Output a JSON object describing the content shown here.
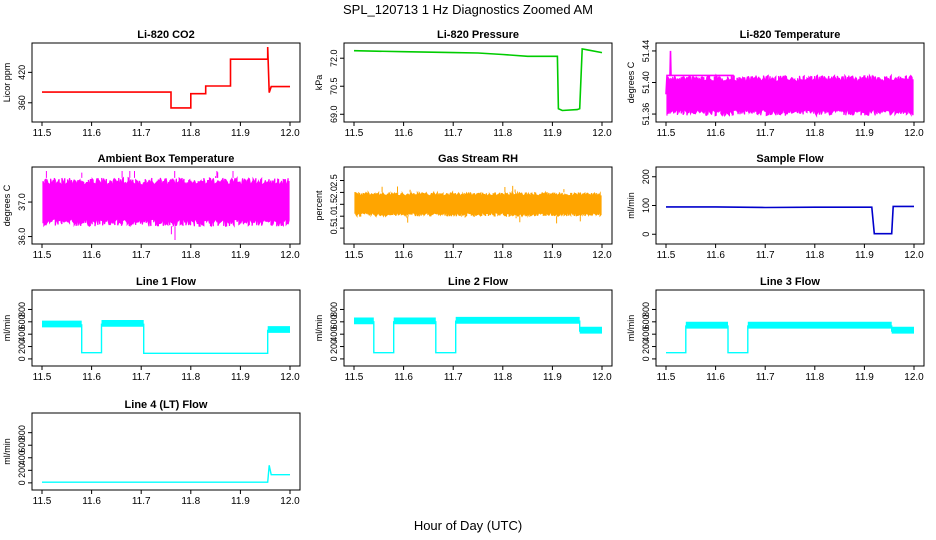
{
  "figure": {
    "title": "SPL_120713  1 Hz Diagnostics Zoomed AM",
    "xlabel": "Hour of Day (UTC)"
  },
  "chart_data": [
    {
      "type": "line",
      "title": "Li-820 CO2",
      "ylabel": "Licor ppm",
      "color": "#ff0000",
      "xlim": [
        11.5,
        12.0
      ],
      "ylim": [
        330,
        470
      ],
      "xticks": [
        "11.5",
        "11.6",
        "11.7",
        "11.8",
        "11.9",
        "12.0"
      ],
      "yticks": [
        360,
        420
      ],
      "yticklabels": [
        "360",
        "420"
      ],
      "series": [
        {
          "points": [
            [
              11.5,
              381
            ],
            [
              11.76,
              381
            ],
            [
              11.76,
              350
            ],
            [
              11.8,
              350
            ],
            [
              11.8,
              378
            ],
            [
              11.83,
              378
            ],
            [
              11.83,
              393
            ],
            [
              11.88,
              393
            ],
            [
              11.88,
              446
            ],
            [
              11.955,
              446
            ],
            [
              11.955,
              470
            ],
            [
              11.958,
              380
            ],
            [
              11.962,
              392
            ],
            [
              12.0,
              392
            ]
          ]
        }
      ]
    },
    {
      "type": "line",
      "title": "Li-820 Pressure",
      "ylabel": "kPa",
      "color": "#00cc00",
      "xlim": [
        11.5,
        12.0
      ],
      "ylim": [
        68.8,
        72.6
      ],
      "xticks": [
        "11.5",
        "11.6",
        "11.7",
        "11.8",
        "11.9",
        "12.0"
      ],
      "yticks": [
        69.0,
        70.5,
        72.0
      ],
      "yticklabels": [
        "69.0",
        "70.5",
        "72.0"
      ],
      "series": [
        {
          "points": [
            [
              11.5,
              72.4
            ],
            [
              11.6,
              72.35
            ],
            [
              11.7,
              72.3
            ],
            [
              11.75,
              72.28
            ],
            [
              11.8,
              72.2
            ],
            [
              11.85,
              72.1
            ],
            [
              11.9,
              72.1
            ],
            [
              11.91,
              72.1
            ],
            [
              11.912,
              69.3
            ],
            [
              11.92,
              69.2
            ],
            [
              11.95,
              69.25
            ],
            [
              11.955,
              69.3
            ],
            [
              11.96,
              72.5
            ],
            [
              11.97,
              72.45
            ],
            [
              12.0,
              72.3
            ]
          ]
        }
      ]
    },
    {
      "type": "line",
      "title": "Li-820 Temperature",
      "ylabel": "degrees C",
      "color": "#ff00ff",
      "xlim": [
        11.5,
        12.0
      ],
      "ylim": [
        51.355,
        51.445
      ],
      "xticks": [
        "11.5",
        "11.6",
        "11.7",
        "11.8",
        "11.9",
        "12.0"
      ],
      "yticks": [
        51.36,
        51.4,
        51.44
      ],
      "yticklabels": [
        "51.36",
        "51.40",
        "51.44"
      ],
      "band": [
        11.502,
        11.998,
        51.358,
        51.409
      ],
      "series": [
        {
          "points": [
            [
              11.5,
              51.385
            ],
            [
              11.502,
              51.409
            ],
            [
              11.508,
              51.409
            ],
            [
              11.509,
              51.44
            ],
            [
              11.51,
              51.409
            ],
            [
              11.635,
              51.409
            ],
            [
              11.635,
              51.38
            ],
            [
              11.636,
              51.409
            ]
          ]
        }
      ]
    },
    {
      "type": "line",
      "title": "Ambient Box Temperature",
      "ylabel": "degrees C",
      "color": "#ff00ff",
      "xlim": [
        11.5,
        12.0
      ],
      "ylim": [
        35.9,
        37.9
      ],
      "xticks": [
        "11.5",
        "11.6",
        "11.7",
        "11.8",
        "11.9",
        "12.0"
      ],
      "yticks": [
        36.0,
        37.0
      ],
      "yticklabels": [
        "36.0",
        "37.0"
      ],
      "band": [
        11.502,
        11.998,
        36.3,
        37.7
      ],
      "series": []
    },
    {
      "type": "line",
      "title": "Gas Stream RH",
      "ylabel": "percent",
      "color": "#ffa500",
      "xlim": [
        11.5,
        12.0
      ],
      "ylim": [
        0.0,
        2.9
      ],
      "xticks": [
        "11.5",
        "11.6",
        "11.7",
        "11.8",
        "11.9",
        "12.0"
      ],
      "yticks": [
        0.5,
        1.0,
        1.5,
        2.0,
        2.5
      ],
      "yticklabels": [
        "0.5",
        "1.0",
        "1.5",
        "2.0",
        "2.5"
      ],
      "band": [
        11.502,
        11.998,
        1.0,
        2.0
      ],
      "series": []
    },
    {
      "type": "line",
      "title": "Sample Flow",
      "ylabel": "ml/min",
      "color": "#0000cc",
      "xlim": [
        11.5,
        12.0
      ],
      "ylim": [
        -20,
        220
      ],
      "xticks": [
        "11.5",
        "11.6",
        "11.7",
        "11.8",
        "11.9",
        "12.0"
      ],
      "yticks": [
        0,
        100,
        200
      ],
      "yticklabels": [
        "0",
        "100",
        "200"
      ],
      "series": [
        {
          "points": [
            [
              11.5,
              95
            ],
            [
              11.6,
              95
            ],
            [
              11.7,
              93
            ],
            [
              11.8,
              94
            ],
            [
              11.915,
              94
            ],
            [
              11.92,
              2
            ],
            [
              11.955,
              2
            ],
            [
              11.958,
              97
            ],
            [
              12.0,
              97
            ]
          ]
        }
      ]
    },
    {
      "type": "line",
      "title": "Line 1 Flow",
      "ylabel": "ml/min",
      "color": "#00ffff",
      "xlim": [
        11.5,
        12.0
      ],
      "ylim": [
        -50,
        1050
      ],
      "xticks": [
        "11.5",
        "11.6",
        "11.7",
        "11.8",
        "11.9",
        "12.0"
      ],
      "yticks": [
        0,
        200,
        400,
        600,
        800
      ],
      "yticklabels": [
        "0",
        "200",
        "400",
        "600",
        "800"
      ],
      "series": [
        {
          "points": [
            [
              11.5,
              550
            ],
            [
              11.58,
              550
            ],
            [
              11.58,
              100
            ],
            [
              11.62,
              100
            ],
            [
              11.62,
              560
            ],
            [
              11.705,
              560
            ],
            [
              11.705,
              90
            ],
            [
              11.955,
              90
            ],
            [
              11.955,
              460
            ],
            [
              12.0,
              460
            ]
          ]
        }
      ]
    },
    {
      "type": "line",
      "title": "Line 2 Flow",
      "ylabel": "ml/min",
      "color": "#00ffff",
      "xlim": [
        11.5,
        12.0
      ],
      "ylim": [
        -50,
        1050
      ],
      "xticks": [
        "11.5",
        "11.6",
        "11.7",
        "11.8",
        "11.9",
        "12.0"
      ],
      "yticks": [
        0,
        200,
        400,
        600,
        800
      ],
      "yticklabels": [
        "0",
        "200",
        "400",
        "600",
        "800"
      ],
      "series": [
        {
          "points": [
            [
              11.5,
              600
            ],
            [
              11.54,
              600
            ],
            [
              11.54,
              100
            ],
            [
              11.58,
              100
            ],
            [
              11.58,
              600
            ],
            [
              11.665,
              600
            ],
            [
              11.665,
              100
            ],
            [
              11.705,
              100
            ],
            [
              11.705,
              610
            ],
            [
              11.955,
              610
            ],
            [
              11.955,
              450
            ],
            [
              12.0,
              450
            ]
          ]
        }
      ]
    },
    {
      "type": "line",
      "title": "Line 3 Flow",
      "ylabel": "ml/min",
      "color": "#00ffff",
      "xlim": [
        11.5,
        12.0
      ],
      "ylim": [
        -50,
        1050
      ],
      "xticks": [
        "11.5",
        "11.6",
        "11.7",
        "11.8",
        "11.9",
        "12.0"
      ],
      "yticks": [
        0,
        200,
        400,
        600,
        800
      ],
      "yticklabels": [
        "0",
        "200",
        "400",
        "600",
        "800"
      ],
      "series": [
        {
          "points": [
            [
              11.5,
              100
            ],
            [
              11.54,
              100
            ],
            [
              11.54,
              530
            ],
            [
              11.625,
              530
            ],
            [
              11.625,
              100
            ],
            [
              11.665,
              100
            ],
            [
              11.665,
              530
            ],
            [
              11.955,
              530
            ],
            [
              11.955,
              450
            ],
            [
              12.0,
              450
            ]
          ]
        }
      ]
    },
    {
      "type": "line",
      "title": "Line 4 (LT) Flow",
      "ylabel": "ml/min",
      "color": "#00ffff",
      "xlim": [
        11.5,
        12.0
      ],
      "ylim": [
        -50,
        1050
      ],
      "xticks": [
        "11.5",
        "11.6",
        "11.7",
        "11.8",
        "11.9",
        "12.0"
      ],
      "yticks": [
        0,
        200,
        400,
        600,
        800
      ],
      "yticklabels": [
        "0",
        "200",
        "400",
        "600",
        "800"
      ],
      "series": [
        {
          "points": [
            [
              11.5,
              10
            ],
            [
              11.955,
              10
            ],
            [
              11.958,
              280
            ],
            [
              11.962,
              130
            ],
            [
              12.0,
              130
            ]
          ]
        }
      ]
    }
  ]
}
